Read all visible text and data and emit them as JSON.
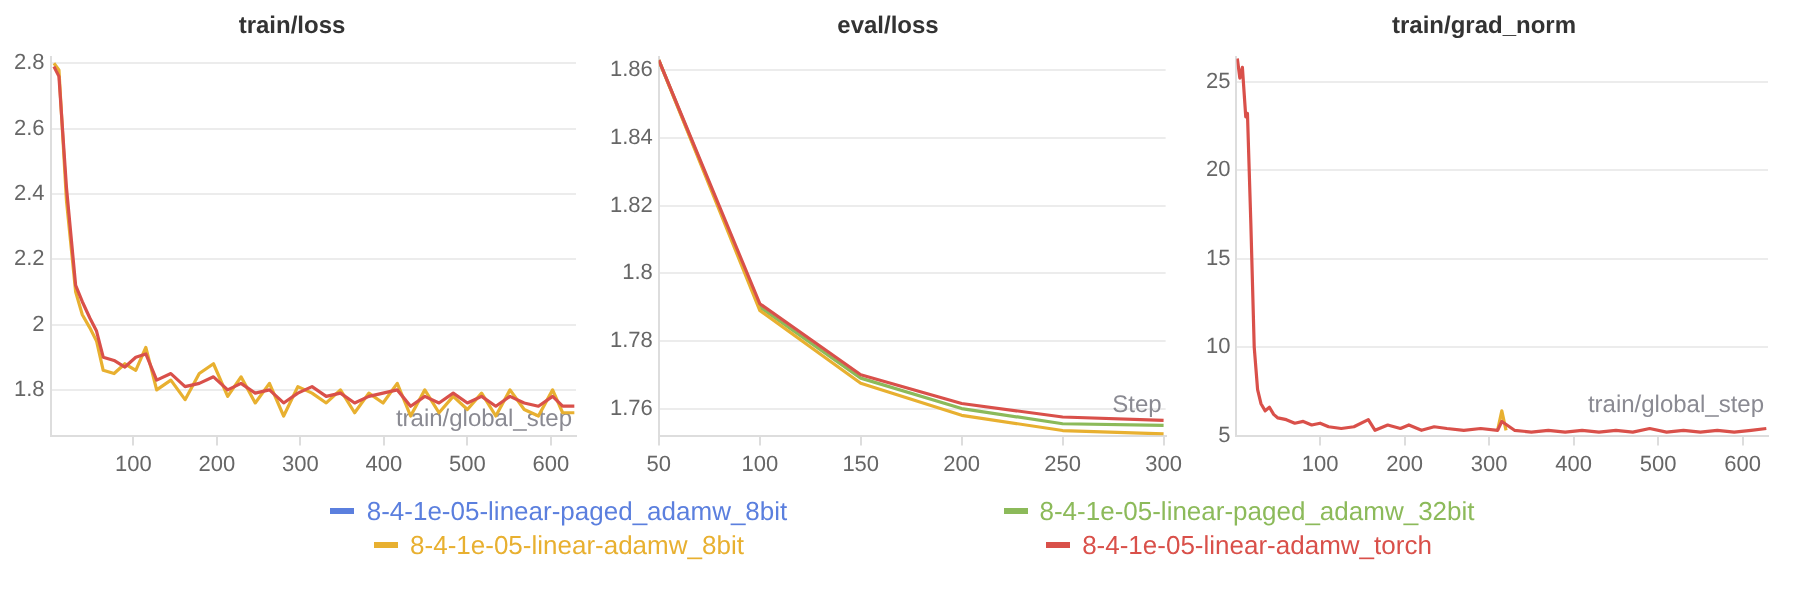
{
  "chart_data": [
    {
      "type": "line",
      "title": "train/loss",
      "xlabel": "train/global_step",
      "xlim": [
        1,
        630
      ],
      "xticks": [
        100,
        200,
        300,
        400,
        500,
        600
      ],
      "ylim": [
        1.66,
        2.82
      ],
      "yticks": [
        1.8,
        2,
        2.2,
        2.4,
        2.6,
        2.8
      ],
      "grid": "y",
      "legend": false,
      "x": [
        5,
        11,
        20,
        31,
        39,
        48,
        56,
        64,
        77,
        90,
        103,
        115,
        128,
        145,
        162,
        179,
        196,
        213,
        229,
        246,
        263,
        280,
        297,
        314,
        331,
        348,
        365,
        382,
        399,
        416,
        432,
        449,
        466,
        483,
        500,
        517,
        534,
        551,
        568,
        585,
        602,
        614,
        628
      ],
      "series": [
        {
          "color": "#e8b030",
          "values": [
            2.8,
            2.78,
            2.38,
            2.1,
            2.03,
            1.99,
            1.95,
            1.86,
            1.85,
            1.88,
            1.86,
            1.93,
            1.8,
            1.83,
            1.77,
            1.85,
            1.88,
            1.78,
            1.84,
            1.76,
            1.82,
            1.72,
            1.81,
            1.79,
            1.76,
            1.8,
            1.73,
            1.79,
            1.76,
            1.82,
            1.72,
            1.8,
            1.73,
            1.78,
            1.74,
            1.79,
            1.72,
            1.8,
            1.74,
            1.72,
            1.8,
            1.73,
            1.73
          ]
        },
        {
          "color": "#d9504a",
          "values": [
            2.79,
            2.76,
            2.42,
            2.12,
            2.07,
            2.02,
            1.98,
            1.9,
            1.89,
            1.87,
            1.9,
            1.91,
            1.83,
            1.85,
            1.81,
            1.82,
            1.84,
            1.8,
            1.82,
            1.79,
            1.8,
            1.76,
            1.79,
            1.81,
            1.78,
            1.79,
            1.76,
            1.78,
            1.79,
            1.8,
            1.75,
            1.78,
            1.76,
            1.79,
            1.76,
            1.78,
            1.75,
            1.78,
            1.76,
            1.75,
            1.78,
            1.75,
            1.75
          ]
        }
      ]
    },
    {
      "type": "line",
      "title": "eval/loss",
      "xlabel": "Step",
      "xlim": [
        50,
        301
      ],
      "xticks": [
        50,
        100,
        150,
        200,
        250,
        300
      ],
      "ylim": [
        1.752,
        1.864
      ],
      "yticks": [
        1.76,
        1.78,
        1.8,
        1.82,
        1.84,
        1.86
      ],
      "grid": "y",
      "legend": "bottom",
      "x": [
        50,
        100,
        150,
        200,
        250,
        300
      ],
      "series": [
        {
          "name": "8-4-1e-05-linear-paged_adamw_8bit",
          "color": "#5b7fde",
          "values": [
            null,
            null,
            null,
            null,
            null,
            null
          ]
        },
        {
          "name": "8-4-1e-05-linear-paged_adamw_32bit",
          "color": "#8cba5a",
          "values": [
            1.863,
            1.79,
            1.769,
            1.76,
            1.7555,
            1.755
          ]
        },
        {
          "name": "8-4-1e-05-linear-adamw_8bit",
          "color": "#e8b030",
          "values": [
            1.863,
            1.789,
            1.7675,
            1.758,
            1.7535,
            1.7525
          ]
        },
        {
          "name": "8-4-1e-05-linear-adamw_torch",
          "color": "#d9504a",
          "values": [
            1.863,
            1.791,
            1.77,
            1.7615,
            1.7575,
            1.7565
          ]
        }
      ]
    },
    {
      "type": "line",
      "title": "train/grad_norm",
      "xlabel": "train/global_step",
      "xlim": [
        1,
        630
      ],
      "xticks": [
        100,
        200,
        300,
        400,
        500,
        600
      ],
      "ylim": [
        5,
        26.4
      ],
      "yticks": [
        5,
        10,
        15,
        20,
        25
      ],
      "grid": "y",
      "legend": false,
      "series": [
        {
          "color": "#e8b030",
          "x": [
            310,
            315,
            320
          ],
          "values": [
            5.3,
            6.4,
            5.3
          ]
        },
        {
          "color": "#d9504a",
          "x": [
            2,
            5,
            8,
            12,
            14,
            18,
            22,
            26,
            30,
            35,
            40,
            45,
            50,
            60,
            70,
            80,
            90,
            100,
            110,
            125,
            140,
            157,
            165,
            180,
            195,
            205,
            220,
            235,
            250,
            270,
            290,
            310,
            315,
            330,
            350,
            370,
            390,
            410,
            430,
            450,
            470,
            490,
            510,
            530,
            550,
            570,
            590,
            610,
            628
          ],
          "values": [
            26.3,
            25.2,
            25.8,
            23.0,
            23.2,
            17,
            10,
            7.6,
            6.8,
            6.4,
            6.6,
            6.2,
            6.0,
            5.9,
            5.7,
            5.8,
            5.6,
            5.7,
            5.5,
            5.4,
            5.5,
            5.9,
            5.3,
            5.6,
            5.4,
            5.6,
            5.3,
            5.5,
            5.4,
            5.3,
            5.4,
            5.3,
            5.8,
            5.3,
            5.2,
            5.3,
            5.2,
            5.3,
            5.2,
            5.3,
            5.2,
            5.4,
            5.2,
            5.3,
            5.2,
            5.3,
            5.2,
            5.3,
            5.4
          ]
        }
      ]
    }
  ]
}
